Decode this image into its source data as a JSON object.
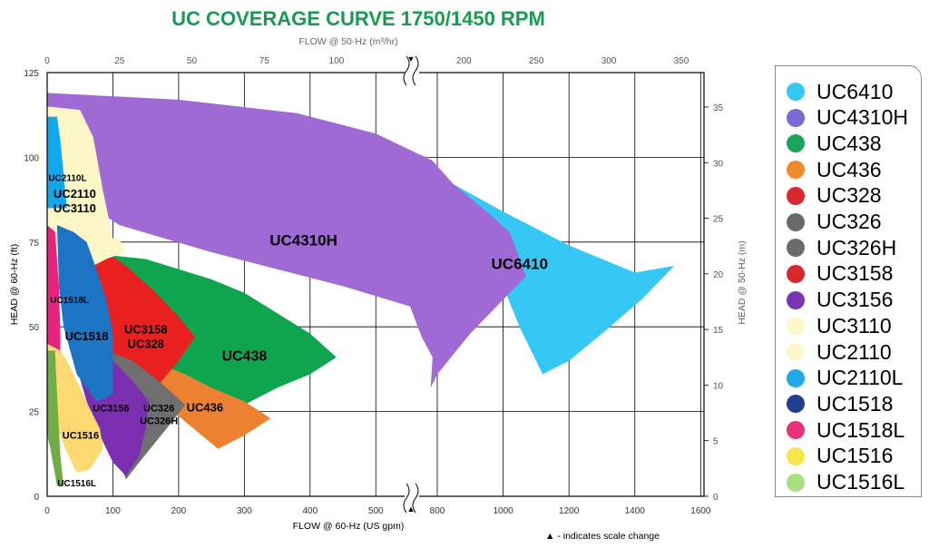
{
  "chart_data": {
    "type": "area",
    "title": "UC COVERAGE CURVE 1750/1450 RPM",
    "xlabel_bottom": "FLOW @ 60-Hz (US gpm)",
    "xlabel_top": "FLOW @ 50-Hz (m³/hr)",
    "ylabel_left": "HEAD @ 60-Hz (ft)",
    "ylabel_right": "HEAD @ 50-Hz (m)",
    "note": "▲ - indicates scale change",
    "x_bottom_ticks": [
      "0",
      "100",
      "200",
      "300",
      "400",
      "500",
      "800",
      "1000",
      "1200",
      "1400",
      "1600"
    ],
    "x_top_ticks": [
      "0",
      "25",
      "50",
      "75",
      "100",
      "200",
      "250",
      "300",
      "350"
    ],
    "y_left_ticks": [
      "0",
      "25",
      "50",
      "75",
      "100",
      "125"
    ],
    "y_right_ticks": [
      "0",
      "5",
      "10",
      "15",
      "20",
      "25",
      "30",
      "35"
    ],
    "xlim_bottom_segments": [
      [
        0,
        575
      ],
      [
        750,
        1600
      ]
    ],
    "ylim_left": [
      0,
      125
    ],
    "grid": true,
    "legend_position": "right",
    "series": [
      {
        "name": "UC6410",
        "color": "#35c8f5",
        "region_label": "UC6410",
        "points": [
          [
            500,
            106
          ],
          [
            680,
            100
          ],
          [
            850,
            92
          ],
          [
            1000,
            84
          ],
          [
            1200,
            74
          ],
          [
            1400,
            66
          ],
          [
            1520,
            68
          ],
          [
            1420,
            58
          ],
          [
            1300,
            48
          ],
          [
            1200,
            40
          ],
          [
            1120,
            36
          ],
          [
            1050,
            50
          ],
          [
            1000,
            62
          ],
          [
            900,
            74
          ],
          [
            760,
            82
          ],
          [
            600,
            88
          ],
          [
            500,
            92
          ]
        ]
      },
      {
        "name": "UC4310H",
        "color": "#a06ad4",
        "region_label": "UC4310H",
        "points": [
          [
            0,
            119
          ],
          [
            200,
            117
          ],
          [
            380,
            113
          ],
          [
            500,
            107
          ],
          [
            720,
            99
          ],
          [
            850,
            92
          ],
          [
            950,
            84
          ],
          [
            1020,
            78
          ],
          [
            1070,
            65
          ],
          [
            1000,
            58
          ],
          [
            900,
            48
          ],
          [
            800,
            36
          ],
          [
            780,
            32
          ],
          [
            720,
            41
          ],
          [
            650,
            47
          ],
          [
            575,
            56
          ],
          [
            450,
            62
          ],
          [
            330,
            68
          ],
          [
            250,
            72
          ],
          [
            180,
            76
          ],
          [
            110,
            80
          ],
          [
            70,
            85
          ],
          [
            30,
            96
          ],
          [
            0,
            98
          ]
        ]
      },
      {
        "name": "UC438",
        "color": "#0ea54e",
        "region_label": "UC438",
        "points": [
          [
            40,
            72
          ],
          [
            100,
            71
          ],
          [
            150,
            70
          ],
          [
            200,
            67
          ],
          [
            250,
            64
          ],
          [
            300,
            60
          ],
          [
            350,
            54
          ],
          [
            400,
            48
          ],
          [
            440,
            41
          ],
          [
            400,
            36
          ],
          [
            350,
            32
          ],
          [
            300,
            27
          ],
          [
            250,
            24
          ],
          [
            200,
            26
          ],
          [
            150,
            30
          ],
          [
            100,
            40
          ],
          [
            60,
            50
          ]
        ]
      },
      {
        "name": "UC436",
        "color": "#ec8132",
        "region_label": "UC436",
        "points": [
          [
            170,
            39
          ],
          [
            210,
            36
          ],
          [
            250,
            32
          ],
          [
            300,
            28
          ],
          [
            340,
            23
          ],
          [
            300,
            18
          ],
          [
            260,
            14
          ],
          [
            210,
            22
          ],
          [
            175,
            28
          ]
        ]
      },
      {
        "name": "UC3158",
        "color": "#e82020",
        "region_label": "UC3158\nUC328",
        "points": [
          [
            60,
            72
          ],
          [
            90,
            72
          ],
          [
            120,
            68
          ],
          [
            160,
            61
          ],
          [
            200,
            53
          ],
          [
            225,
            47
          ],
          [
            200,
            40
          ],
          [
            170,
            33
          ],
          [
            130,
            27
          ],
          [
            100,
            32
          ],
          [
            80,
            42
          ],
          [
            70,
            55
          ]
        ]
      },
      {
        "name": "UC326",
        "color": "#6f6f6f",
        "region_label": "UC326\nUC326H",
        "points": [
          [
            50,
            43
          ],
          [
            90,
            43
          ],
          [
            130,
            40
          ],
          [
            170,
            34
          ],
          [
            210,
            27
          ],
          [
            190,
            22
          ],
          [
            165,
            16
          ],
          [
            140,
            10
          ],
          [
            120,
            5
          ],
          [
            100,
            15
          ],
          [
            80,
            25
          ],
          [
            60,
            35
          ]
        ]
      },
      {
        "name": "UC3156",
        "color": "#7b2fb0",
        "region_label": "UC3156",
        "points": [
          [
            40,
            44
          ],
          [
            65,
            44
          ],
          [
            100,
            40
          ],
          [
            130,
            34
          ],
          [
            155,
            28
          ],
          [
            150,
            20
          ],
          [
            140,
            12
          ],
          [
            120,
            6
          ],
          [
            100,
            10
          ],
          [
            80,
            18
          ],
          [
            60,
            28
          ],
          [
            45,
            38
          ]
        ]
      },
      {
        "name": "UC3110",
        "color": "#fdf7c8",
        "region_label": "UC2110\nUC3110",
        "points": [
          [
            0,
            115
          ],
          [
            50,
            114
          ],
          [
            70,
            106
          ],
          [
            85,
            90
          ],
          [
            100,
            76
          ],
          [
            110,
            76
          ],
          [
            118,
            72
          ],
          [
            90,
            70
          ],
          [
            70,
            68
          ],
          [
            40,
            66
          ],
          [
            0,
            66
          ]
        ]
      },
      {
        "name": "UC2110L",
        "color": "#12a8ee",
        "region_label": "UC2110L",
        "points": [
          [
            0,
            112
          ],
          [
            15,
            112
          ],
          [
            20,
            105
          ],
          [
            30,
            85
          ],
          [
            0,
            85
          ]
        ]
      },
      {
        "name": "UC1518",
        "color": "#1c74c4",
        "region_label": "UC1518",
        "points": [
          [
            15,
            80
          ],
          [
            40,
            78
          ],
          [
            60,
            75
          ],
          [
            75,
            67
          ],
          [
            90,
            58
          ],
          [
            100,
            48
          ],
          [
            100,
            30
          ],
          [
            75,
            28
          ],
          [
            45,
            36
          ],
          [
            25,
            50
          ],
          [
            18,
            62
          ]
        ]
      },
      {
        "name": "UC1518L",
        "color": "#e8237d",
        "region_label": "UC1518L",
        "points": [
          [
            0,
            80
          ],
          [
            12,
            78
          ],
          [
            18,
            62
          ],
          [
            20,
            48
          ],
          [
            20,
            33
          ],
          [
            0,
            32
          ]
        ]
      },
      {
        "name": "UC1516",
        "color": "#fed971",
        "region_label": "UC1516",
        "points": [
          [
            0,
            45
          ],
          [
            20,
            43
          ],
          [
            30,
            40
          ],
          [
            45,
            34
          ],
          [
            62,
            27
          ],
          [
            80,
            20
          ],
          [
            85,
            14
          ],
          [
            65,
            8
          ],
          [
            45,
            7
          ],
          [
            30,
            13
          ],
          [
            15,
            20
          ],
          [
            0,
            22
          ]
        ]
      },
      {
        "name": "UC1516L",
        "color": "#70ad47",
        "region_label": "UC1516L",
        "points": [
          [
            0,
            43
          ],
          [
            12,
            43
          ],
          [
            15,
            30
          ],
          [
            20,
            12
          ],
          [
            25,
            3
          ],
          [
            15,
            3
          ],
          [
            5,
            14
          ],
          [
            0,
            18
          ]
        ]
      }
    ]
  },
  "legend": {
    "items": [
      {
        "label": "UC6410",
        "color": "#35c8f5"
      },
      {
        "label": "UC4310H",
        "color": "#7a6bd4"
      },
      {
        "label": "UC438",
        "color": "#1aa65a"
      },
      {
        "label": "UC436",
        "color": "#f08a2a"
      },
      {
        "label": "UC328",
        "color": "#d8282c"
      },
      {
        "label": "UC326",
        "color": "#6a6a6a"
      },
      {
        "label": "UC326H",
        "color": "#6a6a6a"
      },
      {
        "label": "UC3158",
        "color": "#d8282c"
      },
      {
        "label": "UC3156",
        "color": "#7b35b0"
      },
      {
        "label": "UC3110",
        "color": "#fdf8cc"
      },
      {
        "label": "UC2110",
        "color": "#fdf8cc"
      },
      {
        "label": "UC2110L",
        "color": "#22a9e8"
      },
      {
        "label": "UC1518",
        "color": "#233e8a"
      },
      {
        "label": "UC1518L",
        "color": "#e8327a"
      },
      {
        "label": "UC1516",
        "color": "#f5e64a"
      },
      {
        "label": "UC1516L",
        "color": "#a8e080"
      }
    ]
  }
}
